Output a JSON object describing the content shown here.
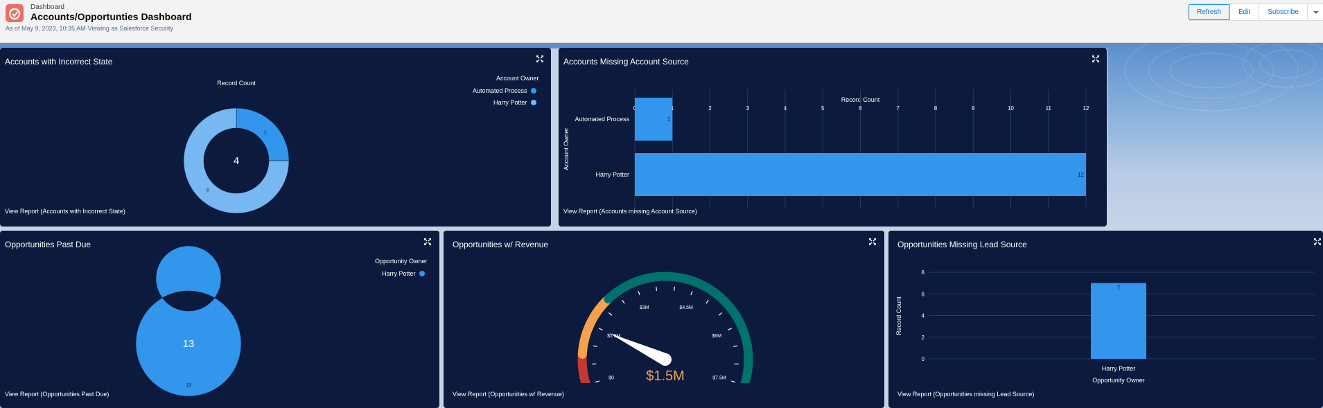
{
  "header": {
    "crumb": "Dashboard",
    "title": "Accounts/Opportunties Dashboard",
    "subtitle": "As of May 9, 2023, 10:35 AM·Viewing as Salesforce Security",
    "buttons": {
      "refresh": "Refresh",
      "edit": "Edit",
      "subscribe": "Subscribe"
    }
  },
  "icons": {
    "app": "dashboard-gauge-icon",
    "expand": "expand-icon",
    "menu": "chevron-down-icon"
  },
  "colors": {
    "panel_bg": "#0b1a3d",
    "series_dark": "#3296ed",
    "series_light": "#78b8f2",
    "gauge_red": "#c23934",
    "gauge_orange": "#f4a24d",
    "gauge_green": "#00716b",
    "gauge_value": "#f4a24d"
  },
  "panels": {
    "p1": {
      "title": "Accounts with Incorrect State",
      "view_report": "View Report (Accounts with Incorrect State)",
      "chart_data": {
        "type": "pie",
        "title": "Record Count",
        "center_total": "4",
        "legend_title": "Account Owner",
        "legend_position": "top-right",
        "slices": [
          {
            "name": "Automated Process",
            "value": 1,
            "label": "1",
            "color": "#3296ed"
          },
          {
            "name": "Harry Potter",
            "value": 3,
            "label": "3",
            "color": "#78b8f2"
          }
        ]
      }
    },
    "p2": {
      "title": "Accounts Missing Account Source",
      "view_report": "View Report (Accounts missing Account Source)",
      "chart_data": {
        "type": "bar",
        "orientation": "horizontal",
        "title": "Record Count",
        "ylabel": "Account Owner",
        "categories": [
          "Automated Process",
          "Harry Potter"
        ],
        "values": [
          1,
          12
        ],
        "labels": [
          "1",
          "12"
        ],
        "xlim": [
          0,
          12
        ],
        "ticks": [
          "0",
          "1",
          "2",
          "3",
          "4",
          "5",
          "6",
          "7",
          "8",
          "9",
          "10",
          "11",
          "12"
        ],
        "grid": true
      }
    },
    "p3": {
      "title": "Opportunities Past Due",
      "view_report": "View Report (Opportunities Past Due)",
      "chart_data": {
        "type": "pie",
        "title": "Record Count",
        "center_total": "13",
        "legend_title": "Opportunity Owner",
        "legend_position": "top-right",
        "slices": [
          {
            "name": "Harry Potter",
            "value": 13,
            "label": "13",
            "color": "#3296ed"
          }
        ]
      }
    },
    "p4": {
      "title": "Opportunities w/ Revenue",
      "view_report": "View Report (Opportunities w/ Revenue)",
      "chart_data": {
        "type": "gauge",
        "min": 0,
        "max": 7500000,
        "value": 1500000,
        "value_label": "$1.5M",
        "ticks": [
          "$0",
          "$1.5M",
          "$3M",
          "$4.5M",
          "$6M",
          "$7.5M"
        ],
        "tick_values": [
          0,
          1500000,
          3000000,
          4500000,
          6000000,
          7500000
        ],
        "bands": [
          {
            "from": 0,
            "to": 750000,
            "color": "#c23934"
          },
          {
            "from": 750000,
            "to": 2250000,
            "color": "#f4a24d"
          },
          {
            "from": 2250000,
            "to": 7500000,
            "color": "#00716b"
          }
        ]
      }
    },
    "p5": {
      "title": "Opportunities Missing Lead Source",
      "view_report": "View Report (Opportunities missing Lead Source)",
      "chart_data": {
        "type": "bar",
        "orientation": "vertical",
        "xlabel": "Opportunity Owner",
        "ylabel": "Record Count",
        "categories": [
          "Harry Potter"
        ],
        "values": [
          7
        ],
        "labels": [
          "7"
        ],
        "ylim": [
          0,
          8
        ],
        "ticks": [
          "0",
          "2",
          "4",
          "6",
          "8"
        ],
        "grid": true
      }
    }
  }
}
